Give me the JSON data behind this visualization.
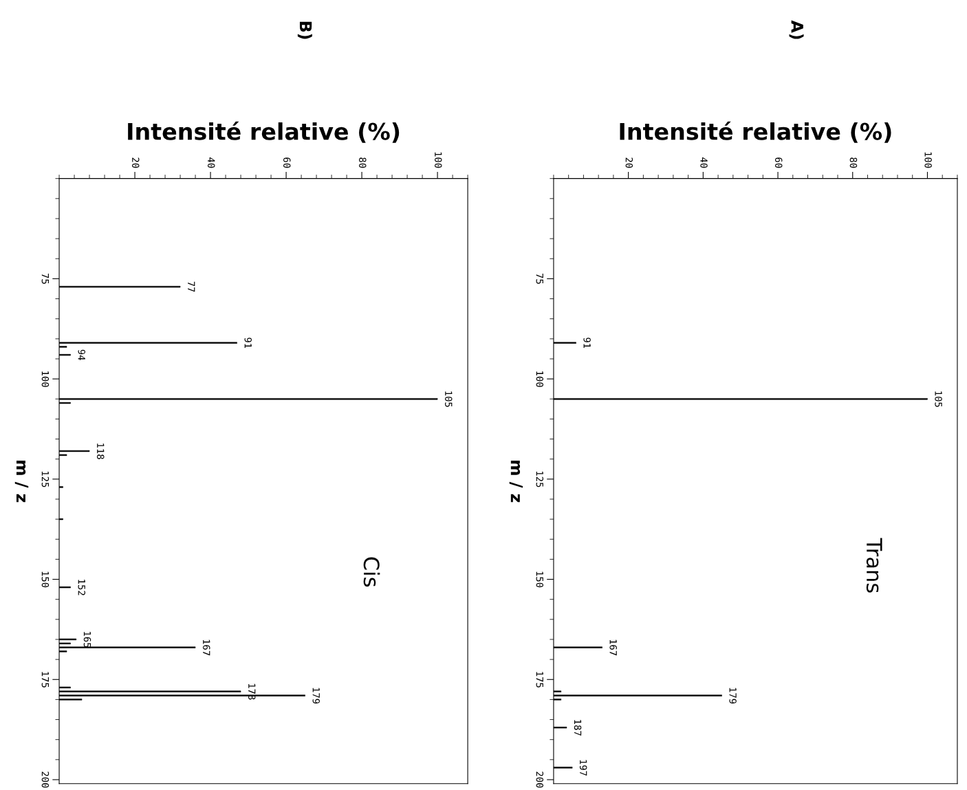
{
  "chart_data": [
    {
      "type": "bar",
      "orientation": "horizontal",
      "title": "A)",
      "xlabel": "Intensité relative (%)",
      "ylabel": "m / z",
      "color": "#000000",
      "annotations": [
        "Trans",
        {
          "text": "91",
          "x": 6,
          "y": 91
        },
        {
          "text": "105",
          "x": 100,
          "y": 105
        },
        {
          "text": "167",
          "x": 13,
          "y": 167
        },
        {
          "text": "179",
          "x": 45,
          "y": 179
        },
        {
          "text": "187",
          "x": 3.5,
          "y": 187
        },
        {
          "text": "197",
          "x": 5,
          "y": 197
        }
      ],
      "x": [
        91,
        105,
        167,
        178,
        179,
        180,
        187,
        197
      ],
      "values": [
        6,
        100,
        13,
        2,
        45,
        2,
        3.5,
        5
      ],
      "xlim": [
        0,
        108
      ],
      "xticks": [
        20,
        40,
        60,
        80,
        100
      ],
      "ylim": [
        201,
        50
      ],
      "yticks": [
        75,
        100,
        125,
        150,
        175,
        200
      ]
    },
    {
      "type": "bar",
      "orientation": "horizontal",
      "title": "B)",
      "xlabel": "Intensité relative (%)",
      "ylabel": "m / z",
      "color": "#000000",
      "annotations": [
        "Cis",
        {
          "text": "77",
          "x": 32,
          "y": 77
        },
        {
          "text": "91",
          "x": 47,
          "y": 91
        },
        {
          "text": "94",
          "x": 3,
          "y": 94
        },
        {
          "text": "105",
          "x": 100,
          "y": 105
        },
        {
          "text": "118",
          "x": 8,
          "y": 118
        },
        {
          "text": "152",
          "x": 3,
          "y": 152
        },
        {
          "text": "165",
          "x": 4.5,
          "y": 165
        },
        {
          "text": "167",
          "x": 36,
          "y": 167
        },
        {
          "text": "178",
          "x": 48,
          "y": 178
        },
        {
          "text": "179",
          "x": 65,
          "y": 179
        }
      ],
      "x": [
        77,
        91,
        92,
        94,
        105,
        106,
        118,
        119,
        127,
        135,
        152,
        165,
        166,
        167,
        168,
        177,
        178,
        179,
        180
      ],
      "values": [
        32,
        47,
        2,
        3,
        100,
        3,
        8,
        2,
        1,
        1,
        3,
        4.5,
        3,
        36,
        2,
        3,
        48,
        65,
        6
      ],
      "xlim": [
        0,
        108
      ],
      "xticks": [
        20,
        40,
        60,
        80,
        100
      ],
      "ylim": [
        201,
        50
      ],
      "yticks": [
        75,
        100,
        125,
        150,
        175,
        200
      ]
    }
  ]
}
